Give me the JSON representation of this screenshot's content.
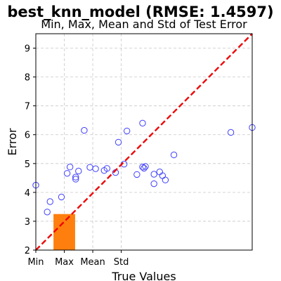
{
  "chart_data": {
    "type": "scatter",
    "title": "best_knn_model (RMSE: 1.4597)",
    "subtitle": "Min, Max, Mean and Std of Test Error",
    "xlabel": "True Values",
    "ylabel": "Error",
    "xlim": [
      0,
      7.6
    ],
    "ylim": [
      2,
      9.5
    ],
    "x_ticks": [
      {
        "value": 0,
        "label": "Min"
      },
      {
        "value": 1,
        "label": "Max"
      },
      {
        "value": 2,
        "label": "Mean"
      },
      {
        "value": 3,
        "label": "Std"
      }
    ],
    "y_ticks": [
      2,
      3,
      4,
      5,
      6,
      7,
      8,
      9
    ],
    "grid": true,
    "reference_line": {
      "from": [
        0,
        2
      ],
      "to": [
        7.6,
        9.5
      ],
      "color": "#ee0000",
      "style": "dashed"
    },
    "bar": {
      "x_start": 0.62,
      "x_end": 1.38,
      "y_bottom": 2,
      "y_top": 3.25,
      "color": "#ff7f0e"
    },
    "points": [
      {
        "x": 0.0,
        "y": 4.25
      },
      {
        "x": 0.4,
        "y": 3.32
      },
      {
        "x": 0.5,
        "y": 3.68
      },
      {
        "x": 0.9,
        "y": 3.84
      },
      {
        "x": 1.1,
        "y": 4.66
      },
      {
        "x": 1.2,
        "y": 4.88
      },
      {
        "x": 1.4,
        "y": 4.53
      },
      {
        "x": 1.4,
        "y": 4.46
      },
      {
        "x": 1.5,
        "y": 4.74
      },
      {
        "x": 1.7,
        "y": 6.15
      },
      {
        "x": 1.9,
        "y": 4.87
      },
      {
        "x": 2.1,
        "y": 4.82
      },
      {
        "x": 2.4,
        "y": 4.76
      },
      {
        "x": 2.5,
        "y": 4.83
      },
      {
        "x": 2.8,
        "y": 4.69
      },
      {
        "x": 2.9,
        "y": 5.74
      },
      {
        "x": 3.1,
        "y": 4.98
      },
      {
        "x": 3.2,
        "y": 6.13
      },
      {
        "x": 3.55,
        "y": 4.62
      },
      {
        "x": 3.75,
        "y": 6.4
      },
      {
        "x": 3.75,
        "y": 4.88
      },
      {
        "x": 3.8,
        "y": 4.84
      },
      {
        "x": 3.85,
        "y": 4.9
      },
      {
        "x": 4.15,
        "y": 4.63
      },
      {
        "x": 4.15,
        "y": 4.3
      },
      {
        "x": 4.35,
        "y": 4.71
      },
      {
        "x": 4.45,
        "y": 4.58
      },
      {
        "x": 4.55,
        "y": 4.43
      },
      {
        "x": 4.85,
        "y": 5.3
      },
      {
        "x": 6.85,
        "y": 6.08
      },
      {
        "x": 7.6,
        "y": 6.25
      }
    ],
    "point_color": "#3f3fff"
  }
}
